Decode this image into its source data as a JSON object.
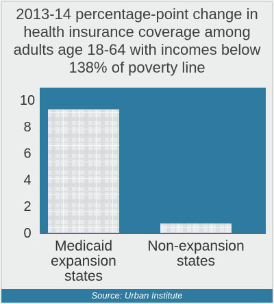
{
  "chart_data": {
    "type": "bar",
    "title": "2013-14 percentage-point change in health insurance coverage among adults age 18-64 with incomes below 138% of poverty line",
    "categories": [
      "Medicaid expansion states",
      "Non-expansion states"
    ],
    "category_lines": [
      [
        "Medicaid",
        "expansion",
        "states"
      ],
      [
        "Non-expansion",
        "states"
      ]
    ],
    "values": [
      9.3,
      0.7
    ],
    "ylim": [
      0,
      10
    ],
    "yticks": [
      "0",
      "2",
      "4",
      "6",
      "8",
      "10"
    ],
    "xlabel": "",
    "ylabel": "",
    "grid": false,
    "colors": {
      "plot_background": "#2e7aa1",
      "bar_fill": "#e7e8e9",
      "plaid_line": "#cfd1d3"
    }
  },
  "source": "Source: Urban Institute"
}
